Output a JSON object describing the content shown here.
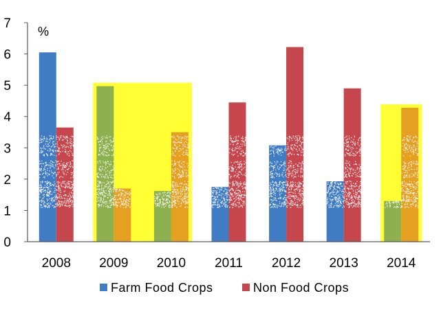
{
  "chart_data": {
    "type": "bar",
    "unit_label": "%",
    "categories": [
      "2008",
      "2009",
      "2010",
      "2011",
      "2012",
      "2013",
      "2014"
    ],
    "series": [
      {
        "name": "Farm Food Crops",
        "values": [
          6.05,
          4.97,
          1.62,
          1.75,
          3.08,
          1.93,
          1.3
        ],
        "color": "#3f7cc3"
      },
      {
        "name": "Non Food Crops",
        "values": [
          3.65,
          1.7,
          3.5,
          4.45,
          6.22,
          4.9,
          4.28
        ],
        "color": "#c6464d"
      }
    ],
    "highlighted_categories": [
      "2009",
      "2010",
      "2014"
    ],
    "highlight_colors": {
      "Farm Food Crops": "#8eb04f",
      "Non Food Crops": "#e6a021",
      "background": "#ffff33"
    },
    "ylim": [
      0,
      7
    ],
    "yticks": [
      "0",
      "1",
      "2",
      "3",
      "4",
      "5",
      "6",
      "7"
    ],
    "legend_position": "bottom",
    "grid": false
  }
}
